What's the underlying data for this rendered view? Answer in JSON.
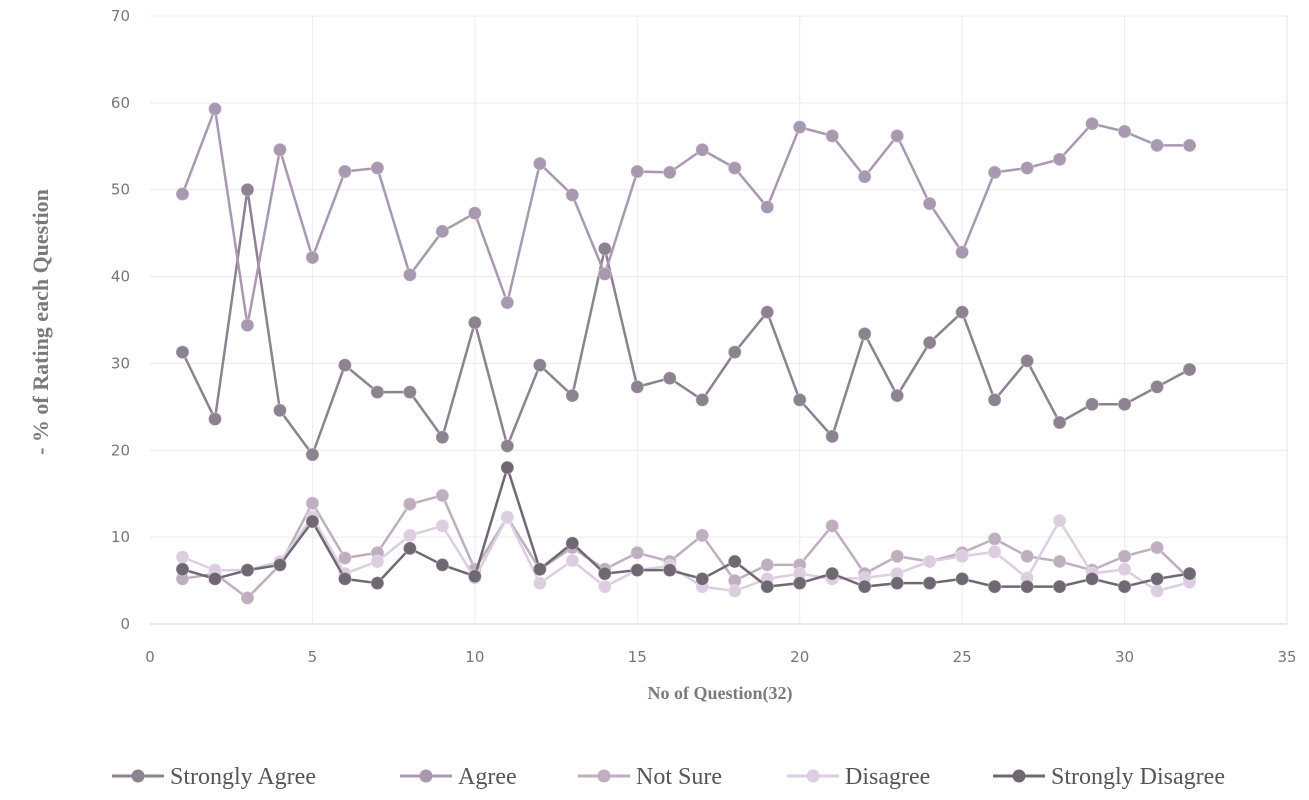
{
  "chart_data": {
    "type": "line",
    "title": "",
    "xlabel": "No of Question(32)",
    "ylabel": "- % of Rating  each Question",
    "xlim": [
      0,
      35
    ],
    "ylim": [
      0,
      70
    ],
    "x_ticks": [
      0,
      5,
      10,
      15,
      20,
      25,
      30,
      35
    ],
    "y_ticks": [
      0,
      10,
      20,
      30,
      40,
      50,
      60,
      70
    ],
    "grid": true,
    "legend_position": "bottom",
    "x": [
      1,
      2,
      3,
      4,
      5,
      6,
      7,
      8,
      9,
      10,
      11,
      12,
      13,
      14,
      15,
      16,
      17,
      18,
      19,
      20,
      21,
      22,
      23,
      24,
      25,
      26,
      27,
      28,
      29,
      30,
      31,
      32
    ],
    "series": [
      {
        "name": "Strongly Agree",
        "color": "#8c8290",
        "values": [
          31.3,
          23.6,
          50,
          24.6,
          19.5,
          29.8,
          26.7,
          26.7,
          21.5,
          34.7,
          20.5,
          29.8,
          26.3,
          43.2,
          27.3,
          28.3,
          25.8,
          31.3,
          35.9,
          25.8,
          21.6,
          33.4,
          26.3,
          32.4,
          35.9,
          25.8,
          30.3,
          23.2,
          25.3,
          25.3,
          27.3,
          29.3
        ]
      },
      {
        "name": "Agree",
        "color": "#a898b0",
        "values": [
          49.5,
          59.3,
          34.4,
          54.6,
          42.2,
          52.1,
          52.5,
          40.2,
          45.2,
          47.3,
          37,
          53,
          49.4,
          40.3,
          52.1,
          52,
          54.6,
          52.5,
          48,
          57.2,
          56.2,
          51.5,
          56.2,
          48.4,
          42.8,
          52,
          52.5,
          53.5,
          57.6,
          56.7,
          55.1,
          55.1
        ]
      },
      {
        "name": "Not Sure",
        "color": "#bfaebf",
        "values": [
          5.2,
          5.8,
          3,
          6.8,
          13.9,
          7.6,
          8.2,
          13.8,
          14.8,
          6.3,
          12.3,
          6.3,
          8.8,
          6.3,
          8.2,
          7.2,
          10.2,
          5,
          6.8,
          6.8,
          11.3,
          5.8,
          7.8,
          7.2,
          8.2,
          9.8,
          7.8,
          7.2,
          6.2,
          7.8,
          8.8,
          5.2
        ]
      },
      {
        "name": "Disagree",
        "color": "#dccde0",
        "values": [
          7.7,
          6.2,
          6.2,
          7.2,
          12.3,
          5.8,
          7.2,
          10.2,
          11.3,
          5.3,
          12.3,
          4.7,
          7.3,
          4.3,
          6.2,
          6.7,
          4.3,
          3.8,
          5.2,
          5.8,
          5.2,
          5.3,
          5.8,
          7.2,
          7.8,
          8.3,
          5.3,
          11.9,
          5.8,
          6.3,
          3.8,
          4.8
        ]
      },
      {
        "name": "Strongly Disagree",
        "color": "#6f6872",
        "values": [
          6.3,
          5.2,
          6.2,
          6.8,
          11.8,
          5.2,
          4.7,
          8.7,
          6.8,
          5.5,
          18,
          6.3,
          9.3,
          5.8,
          6.2,
          6.2,
          5.2,
          7.2,
          4.3,
          4.7,
          5.8,
          4.3,
          4.7,
          4.7,
          5.2,
          4.3,
          4.3,
          4.3,
          5.2,
          4.3,
          5.2,
          5.8
        ]
      }
    ]
  }
}
